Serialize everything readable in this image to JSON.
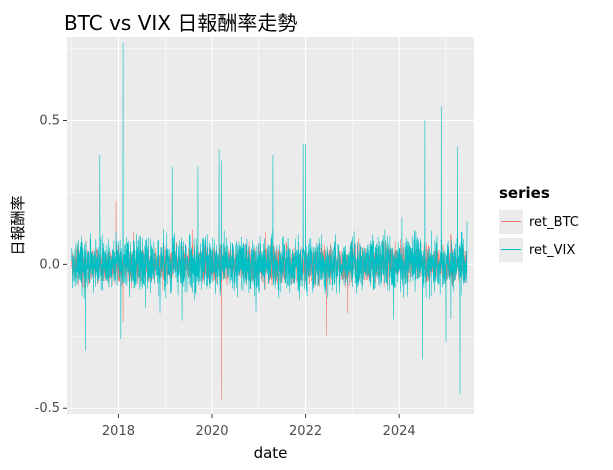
{
  "title": "BTC vs VIX 日報酬率走勢",
  "chart_data": {
    "type": "line",
    "title": "BTC vs VIX 日報酬率走勢",
    "xlabel": "date",
    "ylabel": "日報酬率",
    "xlim": [
      2016.9,
      2025.6
    ],
    "ylim": [
      -0.52,
      0.79
    ],
    "x_ticks": [
      "2018",
      "2020",
      "2022",
      "2024"
    ],
    "y_ticks": [
      "-0.5",
      "0.0",
      "0.5"
    ],
    "grid": true,
    "legend": {
      "title": "series",
      "position": "right"
    },
    "series": [
      {
        "name": "ret_BTC",
        "color": "#F8766D",
        "x_start": 2017.0,
        "x_end": 2025.45,
        "typical_range": [
          -0.1,
          0.1
        ],
        "spikes": [
          {
            "x": 2020.2,
            "y": -0.47
          },
          {
            "x": 2017.95,
            "y": 0.22
          },
          {
            "x": 2018.1,
            "y": -0.2
          },
          {
            "x": 2022.45,
            "y": -0.25
          },
          {
            "x": 2022.9,
            "y": -0.17
          }
        ]
      },
      {
        "name": "ret_VIX",
        "color": "#00BFC4",
        "x_start": 2017.0,
        "x_end": 2025.45,
        "typical_range": [
          -0.12,
          0.15
        ],
        "spikes": [
          {
            "x": 2018.1,
            "y": 0.77
          },
          {
            "x": 2018.05,
            "y": -0.26
          },
          {
            "x": 2017.3,
            "y": 0.38
          },
          {
            "x": 2017.6,
            "y": 0.38
          },
          {
            "x": 2017.3,
            "y": -0.3
          },
          {
            "x": 2019.15,
            "y": 0.34
          },
          {
            "x": 2019.7,
            "y": 0.34
          },
          {
            "x": 2020.15,
            "y": 0.4
          },
          {
            "x": 2020.2,
            "y": 0.36
          },
          {
            "x": 2021.3,
            "y": 0.38
          },
          {
            "x": 2021.95,
            "y": 0.42
          },
          {
            "x": 2022.0,
            "y": 0.42
          },
          {
            "x": 2024.5,
            "y": -0.33
          },
          {
            "x": 2024.55,
            "y": 0.5
          },
          {
            "x": 2024.9,
            "y": 0.55
          },
          {
            "x": 2025.0,
            "y": -0.27
          },
          {
            "x": 2025.25,
            "y": 0.41
          },
          {
            "x": 2025.3,
            "y": -0.45
          },
          {
            "x": 2025.45,
            "y": 0.15
          }
        ]
      }
    ]
  }
}
